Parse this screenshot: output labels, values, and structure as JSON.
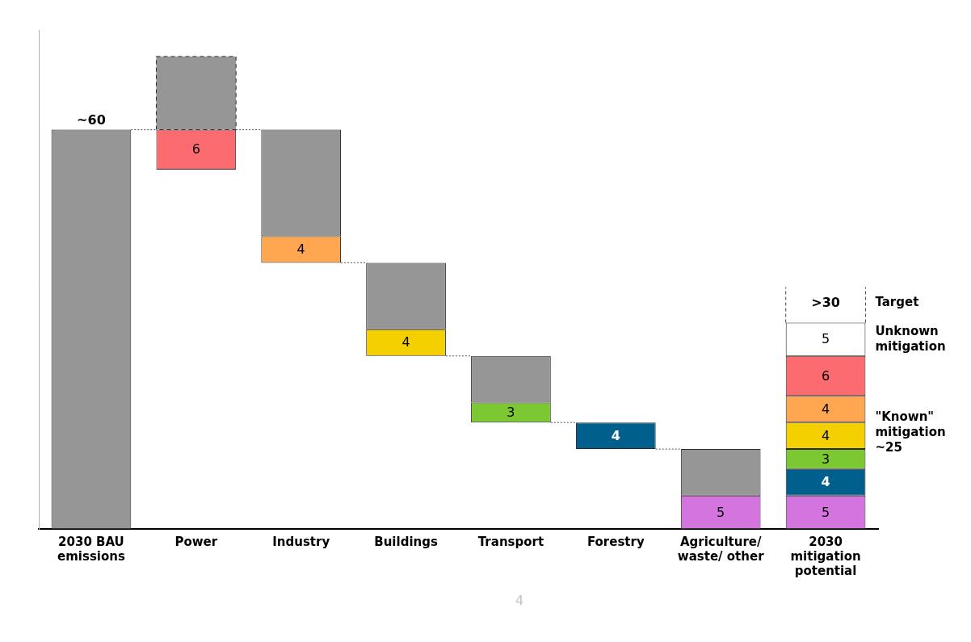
{
  "chart_data": {
    "type": "bar",
    "categories": [
      "2030 BAU emissions",
      "Power",
      "Industry",
      "Buildings",
      "Transport",
      "Forestry",
      "Agriculture/ waste/ other",
      "2030 mitigation potential"
    ],
    "ylim": [
      0,
      75
    ],
    "yticks": [],
    "tick_labels": "x",
    "grid": false,
    "series": [
      {
        "color": "#969696",
        "values": [
          [
            0,
            60
          ],
          null,
          [
            44,
            60
          ],
          [
            30,
            40
          ],
          [
            19,
            26
          ],
          null,
          [
            5,
            12
          ],
          null
        ]
      },
      {
        "color": "#969696",
        "line_style": "dashed",
        "values": [
          null,
          [
            60,
            71
          ],
          null,
          null,
          null,
          null,
          null,
          null
        ]
      },
      {
        "colors": [
          null,
          "#fb6b6f",
          "#ffa650",
          "#f5d000",
          "#7cc832",
          "#005f8c",
          "#d474df",
          null
        ],
        "values": [
          null,
          [
            54,
            60
          ],
          [
            40,
            44
          ],
          [
            26,
            30
          ],
          [
            16,
            19
          ],
          [
            12,
            16
          ],
          [
            0,
            5
          ],
          null
        ],
        "value_labels": [
          null,
          "6",
          "4",
          "4",
          "3",
          "4",
          "5",
          null
        ],
        "data_labels": true
      },
      {
        "color": "#d474df",
        "stacked": true,
        "data_labels": true,
        "values": [
          null,
          null,
          null,
          null,
          null,
          null,
          null,
          5
        ]
      },
      {
        "color": "#005f8c",
        "stacked": true,
        "data_labels": true,
        "values": [
          null,
          null,
          null,
          null,
          null,
          null,
          null,
          4
        ]
      },
      {
        "color": "#7cc832",
        "stacked": true,
        "data_labels": true,
        "values": [
          null,
          null,
          null,
          null,
          null,
          null,
          null,
          3
        ]
      },
      {
        "color": "#f5d000",
        "stacked": true,
        "data_labels": true,
        "values": [
          null,
          null,
          null,
          null,
          null,
          null,
          null,
          4
        ]
      },
      {
        "color": "#ffa650",
        "stacked": true,
        "data_labels": true,
        "values": [
          null,
          null,
          null,
          null,
          null,
          null,
          null,
          4
        ]
      },
      {
        "color": "#fb6b6f",
        "stacked": true,
        "data_labels": true,
        "values": [
          null,
          null,
          null,
          null,
          null,
          null,
          null,
          6
        ]
      },
      {
        "color": "#ffffff",
        "stacked": true,
        "data_labels": true,
        "values": [
          null,
          null,
          null,
          null,
          null,
          null,
          null,
          5
        ]
      }
    ],
    "bau_label": "~60",
    "target_value_label": ">30",
    "target_text": "Target",
    "unknown_text": "Unknown mitigation",
    "known_text": "\"Known\" mitigation ~25",
    "page_number": "4"
  }
}
